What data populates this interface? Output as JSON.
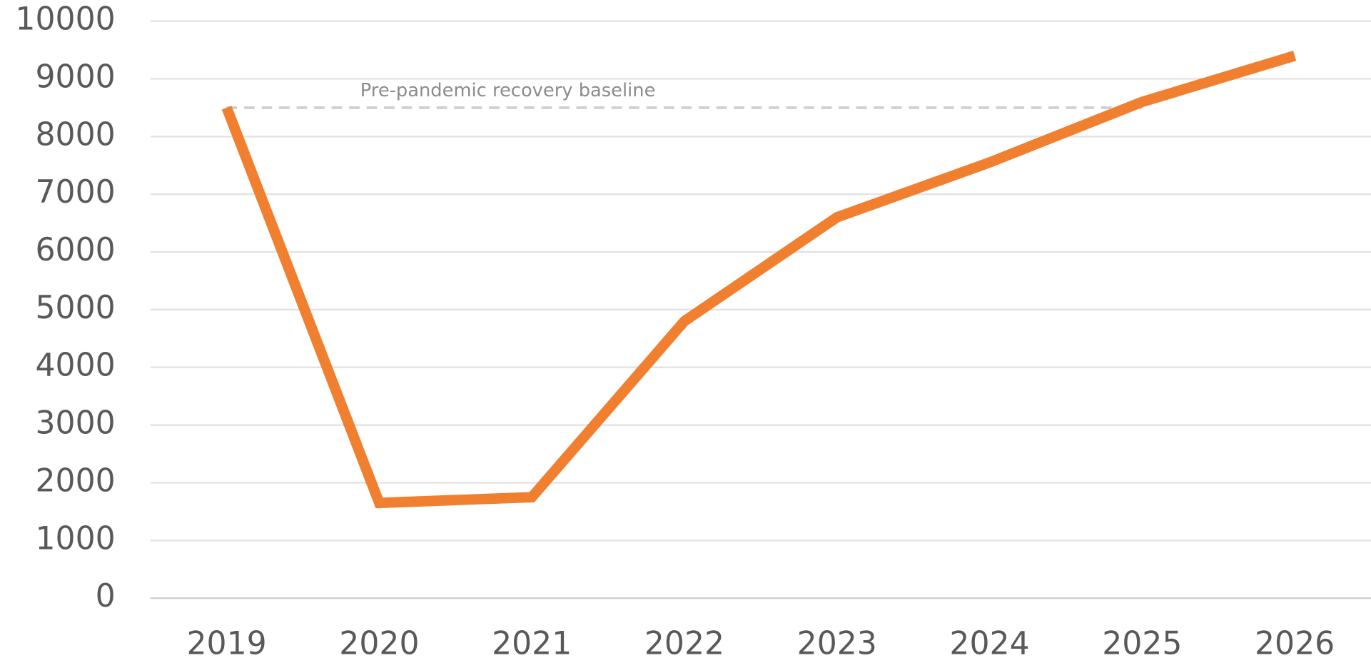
{
  "chart_data": {
    "type": "line",
    "categories": [
      "2019",
      "2020",
      "2021",
      "2022",
      "2023",
      "2024",
      "2025",
      "2026"
    ],
    "values": [
      8500,
      1650,
      1750,
      4800,
      6600,
      7550,
      8600,
      9400
    ],
    "color": "#f0802f",
    "ylim": [
      0,
      10000
    ],
    "yticks": [
      0,
      1000,
      2000,
      3000,
      4000,
      5000,
      6000,
      7000,
      8000,
      9000,
      10000
    ],
    "grid": true,
    "reference_line": {
      "value": 8500,
      "label": "Pre-pandemic recovery baseline"
    }
  }
}
